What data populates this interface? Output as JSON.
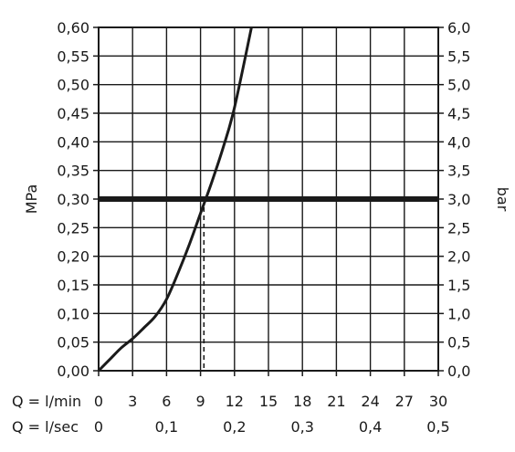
{
  "chart_data": {
    "type": "line",
    "left_axis": {
      "label": "MPa",
      "ticks": [
        "0,00",
        "0,05",
        "0,10",
        "0,15",
        "0,20",
        "0,25",
        "0,30",
        "0,35",
        "0,40",
        "0,45",
        "0,50",
        "0,55",
        "0,60"
      ],
      "range": [
        0,
        0.6
      ]
    },
    "right_axis": {
      "label": "bar",
      "ticks": [
        "0,0",
        "0,5",
        "1,0",
        "1,5",
        "2,0",
        "2,5",
        "3,0",
        "3,5",
        "4,0",
        "4,5",
        "5,0",
        "5,5",
        "6,0"
      ],
      "range": [
        0,
        6
      ]
    },
    "x_axis_lmin": {
      "label": "Q = l/min",
      "ticks": [
        "0",
        "3",
        "6",
        "9",
        "12",
        "15",
        "18",
        "21",
        "24",
        "27",
        "30"
      ],
      "range": [
        0,
        30
      ]
    },
    "x_axis_lsec": {
      "label": "Q = l/sec",
      "ticks": [
        "0",
        "0,1",
        "0,2",
        "0,3",
        "0,4",
        "0,5"
      ],
      "values": [
        0,
        0.1,
        0.2,
        0.3,
        0.4,
        0.5
      ]
    },
    "grid": true,
    "series": [
      {
        "x": [
          0,
          1,
          2,
          3,
          4,
          5,
          6,
          7,
          8,
          9,
          10,
          11,
          12,
          13.5
        ],
        "y": [
          0,
          0.02,
          0.04,
          0.056,
          0.075,
          0.095,
          0.125,
          0.17,
          0.22,
          0.275,
          0.33,
          0.39,
          0.46,
          0.6
        ]
      }
    ],
    "reference_line": {
      "y": 0.3
    },
    "marker_line": {
      "x": 9.3,
      "y": 0.3
    }
  }
}
